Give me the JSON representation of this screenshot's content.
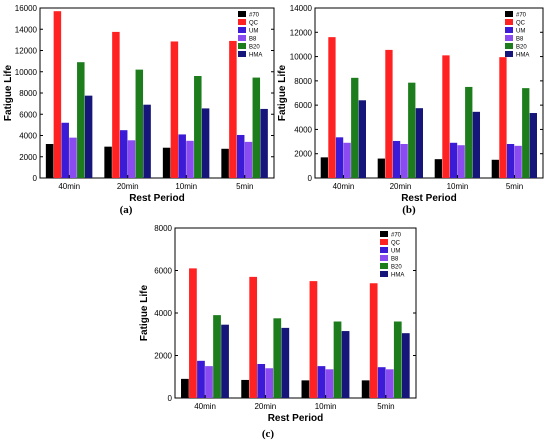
{
  "chart_data": [
    {
      "type": "bar",
      "panel_label": "(a)",
      "xlabel": "Rest Period",
      "ylabel": "Fatigue Life",
      "categories": [
        "40min",
        "20min",
        "10min",
        "5min"
      ],
      "ylim": [
        0,
        16000
      ],
      "yticks": [
        0,
        2000,
        4000,
        6000,
        8000,
        10000,
        12000,
        14000,
        16000
      ],
      "grid": false,
      "legend_position": "top-right",
      "series": [
        {
          "name": "#70",
          "color": "#000000",
          "values": [
            3200,
            2950,
            2850,
            2750
          ]
        },
        {
          "name": "QC",
          "color": "#ff2222",
          "values": [
            15700,
            13750,
            12850,
            12900
          ]
        },
        {
          "name": "UM",
          "color": "#3b1bd6",
          "values": [
            5200,
            4500,
            4100,
            4050
          ]
        },
        {
          "name": "B8",
          "color": "#8a4cf0",
          "values": [
            3800,
            3550,
            3500,
            3400
          ]
        },
        {
          "name": "B20",
          "color": "#1d7d1d",
          "values": [
            10900,
            10200,
            9600,
            9450
          ]
        },
        {
          "name": "HMA",
          "color": "#15157a",
          "values": [
            7750,
            6900,
            6550,
            6500
          ]
        }
      ]
    },
    {
      "type": "bar",
      "panel_label": "(b)",
      "xlabel": "Rest Period",
      "ylabel": "Fatigue Life",
      "categories": [
        "40min",
        "20min",
        "10min",
        "5min"
      ],
      "ylim": [
        0,
        14000
      ],
      "yticks": [
        0,
        2000,
        4000,
        6000,
        8000,
        10000,
        12000,
        14000
      ],
      "grid": false,
      "legend_position": "top-right",
      "series": [
        {
          "name": "#70",
          "color": "#000000",
          "values": [
            1700,
            1600,
            1550,
            1500
          ]
        },
        {
          "name": "QC",
          "color": "#ff2222",
          "values": [
            11600,
            10550,
            10100,
            9950
          ]
        },
        {
          "name": "UM",
          "color": "#3b1bd6",
          "values": [
            3350,
            3050,
            2900,
            2800
          ]
        },
        {
          "name": "B8",
          "color": "#8a4cf0",
          "values": [
            2900,
            2800,
            2700,
            2650
          ]
        },
        {
          "name": "B20",
          "color": "#1d7d1d",
          "values": [
            8250,
            7850,
            7500,
            7400
          ]
        },
        {
          "name": "HMA",
          "color": "#15157a",
          "values": [
            6400,
            5750,
            5450,
            5350
          ]
        }
      ]
    },
    {
      "type": "bar",
      "panel_label": "(c)",
      "xlabel": "Rest Period",
      "ylabel": "Fatigue Life",
      "categories": [
        "40min",
        "20min",
        "10min",
        "5min"
      ],
      "ylim": [
        0,
        8000
      ],
      "yticks": [
        0,
        2000,
        4000,
        6000,
        8000
      ],
      "grid": false,
      "legend_position": "top-right",
      "series": [
        {
          "name": "#70",
          "color": "#000000",
          "values": [
            900,
            850,
            830,
            830
          ]
        },
        {
          "name": "QC",
          "color": "#ff2222",
          "values": [
            6100,
            5700,
            5500,
            5400
          ]
        },
        {
          "name": "UM",
          "color": "#3b1bd6",
          "values": [
            1750,
            1600,
            1500,
            1450
          ]
        },
        {
          "name": "B8",
          "color": "#8a4cf0",
          "values": [
            1500,
            1400,
            1350,
            1350
          ]
        },
        {
          "name": "B20",
          "color": "#1d7d1d",
          "values": [
            3900,
            3750,
            3600,
            3600
          ]
        },
        {
          "name": "HMA",
          "color": "#15157a",
          "values": [
            3450,
            3300,
            3150,
            3050
          ]
        }
      ]
    }
  ]
}
